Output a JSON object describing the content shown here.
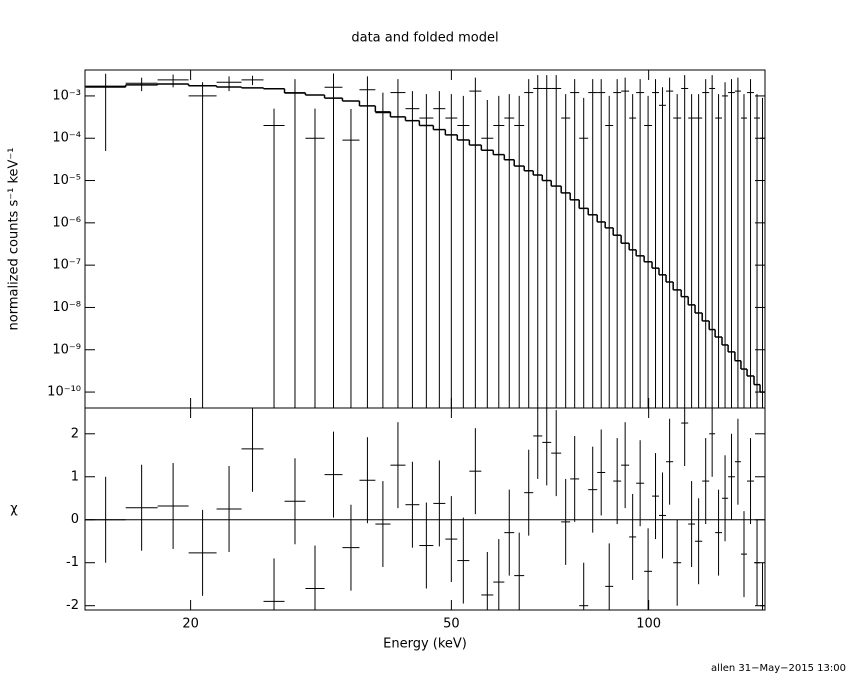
{
  "footer": "allen 31−May−2015 13:00",
  "chart_data": [
    {
      "type": "spectrum",
      "title": "data and folded model",
      "ylabel": "normalized counts s⁻¹ keV⁻¹",
      "ylog": true,
      "xlim": [
        13.8,
        150.5
      ],
      "ylim": [
        4.2e-11,
        0.0041
      ],
      "yticks": [
        {
          "value": 1e-10,
          "label": "10⁻¹⁰"
        },
        {
          "value": 1e-09,
          "label": "10⁻⁹"
        },
        {
          "value": 1e-08,
          "label": "10⁻⁸"
        },
        {
          "value": 1e-07,
          "label": "10⁻⁷"
        },
        {
          "value": 1e-06,
          "label": "10⁻⁶"
        },
        {
          "value": 1e-05,
          "label": "10⁻⁵"
        },
        {
          "value": 0.0001,
          "label": "10⁻⁴"
        },
        {
          "value": 0.001,
          "label": "10⁻³"
        }
      ],
      "bin_edges": [
        13.83,
        15.92,
        17.81,
        19.86,
        21.91,
        23.92,
        25.84,
        27.82,
        29.94,
        32.02,
        34.1,
        36.2,
        38.28,
        40.36,
        42.55,
        44.68,
        46.93,
        48.95,
        51.05,
        53.26,
        55.55,
        57.93,
        60.22,
        62.35,
        64.58,
        66.66,
        68.81,
        71.01,
        73.54,
        75.9,
        78.34,
        80.87,
        83.46,
        85.84,
        88.29,
        90.78,
        93.38,
        95.7,
        98.42,
        101.2,
        103.7,
        106.3,
        109.0,
        112.1,
        114.9,
        117.7,
        120.7,
        123.7,
        126.3,
        129.4,
        132.2,
        135.4,
        138.3,
        141.3,
        144.8,
        147.9,
        150.5
      ],
      "data_values": [
        0.0017,
        0.002,
        0.0024,
        0.001,
        0.0021,
        0.0024,
        0.0002,
        0.0012,
        0.0001,
        0.0016,
        9e-05,
        0.0014,
        0.0004,
        0.0012,
        0.0005,
        0.0003,
        0.0005,
        0.0003,
        0.0002,
        0.0013,
        0.0001,
        0.0002,
        0.0003,
        0.0002,
        0.0012,
        0.0015,
        0.0015,
        0.0015,
        0.0003,
        0.0012,
        0.0001,
        0.0012,
        0.0012,
        0.0002,
        0.0012,
        0.0013,
        0.0003,
        0.0012,
        0.0002,
        0.0012,
        0.0006,
        0.0013,
        0.0003,
        0.0015,
        0.0003,
        0.0003,
        0.0012,
        0.0015,
        0.0003,
        0.001,
        0.0012,
        0.0013,
        0.0003,
        0.0012,
        0.0003,
        0.0001
      ],
      "data_errors": [
        0.00165,
        0.0007,
        0.0008,
        0.0011,
        0.0008,
        0.0006,
        0.0003,
        0.0013,
        0.0004,
        0.0018,
        0.0004,
        0.0015,
        0.0008,
        0.0013,
        0.0008,
        0.0008,
        0.0008,
        0.0008,
        0.0008,
        0.0014,
        0.0007,
        0.0008,
        0.0008,
        0.0008,
        0.0013,
        0.0016,
        0.0016,
        0.0016,
        0.0008,
        0.0013,
        0.0008,
        0.0013,
        0.0013,
        0.0008,
        0.0013,
        0.0014,
        0.0008,
        0.0013,
        0.0008,
        0.0013,
        0.001,
        0.0014,
        0.0008,
        0.0016,
        0.0008,
        0.0008,
        0.0013,
        0.0016,
        0.0008,
        0.0011,
        0.0013,
        0.0014,
        0.0008,
        0.0013,
        0.0008,
        0.0008
      ],
      "model_values": [
        0.00162,
        0.00182,
        0.00191,
        0.00174,
        0.00162,
        0.00155,
        0.00148,
        0.00117,
        0.00105,
        0.00089,
        0.00076,
        0.00058,
        0.00042,
        0.00032,
        0.00026,
        0.0002,
        0.00016,
        0.00012,
        9.1e-05,
        6.9e-05,
        5.2e-05,
        4.1e-05,
        3.1e-05,
        2.2e-05,
        1.7e-05,
        1.35e-05,
        1e-05,
        7.4e-06,
        5.1e-06,
        3.5e-06,
        2.2e-06,
        1.55e-06,
        1.05e-06,
        7.6e-07,
        5.1e-07,
        3.3e-07,
        2.3e-07,
        1.66e-07,
        1.2e-07,
        8.5e-08,
        5.9e-08,
        4e-08,
        2.6e-08,
        1.8e-08,
        1.15e-08,
        7.4e-09,
        4.8e-09,
        3e-09,
        2e-09,
        1.3e-09,
        8.9e-10,
        5.5e-10,
        3.5e-10,
        2.4e-10,
        1.5e-10,
        1e-10
      ],
      "data_color": "#000000",
      "model_color": "#000000"
    },
    {
      "type": "residual",
      "ylabel": "χ",
      "xlabel": "Energy (keV)",
      "xlog": true,
      "xlim": [
        13.8,
        150.5
      ],
      "xticks": [
        20,
        50,
        100
      ],
      "ylim": [
        -2.1,
        2.6
      ],
      "yticks": [
        -2,
        -1,
        0,
        1,
        2
      ],
      "values": [
        0.0,
        0.28,
        0.32,
        -0.77,
        0.25,
        1.65,
        -1.9,
        0.43,
        -1.6,
        1.05,
        -0.65,
        0.92,
        -0.1,
        1.27,
        0.35,
        -0.6,
        0.38,
        -0.45,
        -0.95,
        1.13,
        -1.75,
        -1.45,
        -0.3,
        -1.3,
        0.63,
        1.95,
        1.8,
        1.55,
        -0.05,
        0.95,
        -2.0,
        0.7,
        1.1,
        -1.55,
        0.9,
        1.27,
        -0.4,
        0.85,
        -1.2,
        0.55,
        0.1,
        1.35,
        -1.0,
        2.25,
        -0.1,
        -0.5,
        0.9,
        2.0,
        -0.3,
        0.5,
        1.0,
        1.35,
        -0.8,
        0.9,
        -1.0,
        -2.0
      ],
      "residual_error": 1,
      "reference_line": 0,
      "reference_color": "#00ff00",
      "color": "#000000"
    }
  ]
}
